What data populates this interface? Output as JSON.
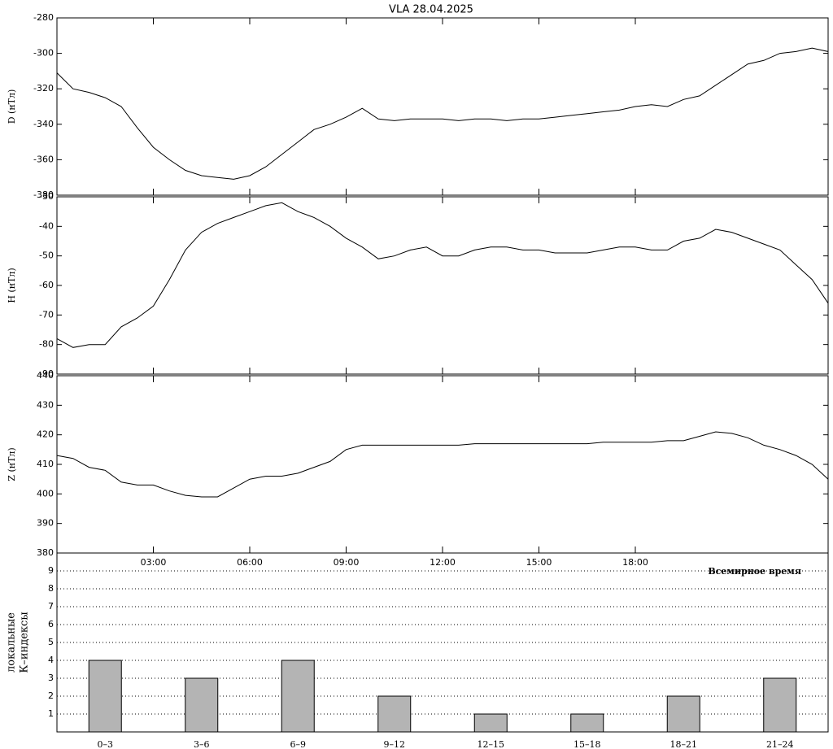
{
  "chart_data": [
    {
      "type": "line",
      "title": "VLA   28.04.2025",
      "ylabel": "D (нТл)",
      "x": [
        0,
        0.5,
        1,
        1.5,
        2,
        2.5,
        3,
        3.5,
        4,
        4.5,
        5,
        5.5,
        6,
        6.5,
        7,
        7.5,
        8,
        8.5,
        9,
        9.5,
        10,
        10.5,
        11,
        11.5,
        12,
        12.5,
        13,
        13.5,
        14,
        14.5,
        15,
        15.5,
        16,
        16.5,
        17,
        17.5,
        18,
        18.5,
        19,
        19.5,
        20,
        20.5,
        21,
        21.5,
        22,
        22.5,
        23,
        23.5,
        24
      ],
      "values": [
        -311,
        -320,
        -322,
        -325,
        -330,
        -342,
        -353,
        -360,
        -366,
        -369,
        -370,
        -371,
        -369,
        -364,
        -357,
        -350,
        -343,
        -340,
        -336,
        -331,
        -337,
        -338,
        -337,
        -337,
        -337,
        -338,
        -337,
        -337,
        -338,
        -337,
        -337,
        -336,
        -335,
        -334,
        -333,
        -332,
        -330,
        -329,
        -330,
        -326,
        -324,
        -318,
        -312,
        -306,
        -304,
        -300,
        -299,
        -297,
        -299
      ],
      "color": "#000000",
      "xlim": [
        0,
        24
      ],
      "ylim": [
        -380,
        -280
      ],
      "yticks": [
        -280,
        -300,
        -320,
        -340,
        -360,
        -380
      ]
    },
    {
      "type": "line",
      "ylabel": "H (нТл)",
      "x": [
        0,
        0.5,
        1,
        1.5,
        2,
        2.5,
        3,
        3.5,
        4,
        4.5,
        5,
        5.5,
        6,
        6.5,
        7,
        7.5,
        8,
        8.5,
        9,
        9.5,
        10,
        10.5,
        11,
        11.5,
        12,
        12.5,
        13,
        13.5,
        14,
        14.5,
        15,
        15.5,
        16,
        16.5,
        17,
        17.5,
        18,
        18.5,
        19,
        19.5,
        20,
        20.5,
        21,
        21.5,
        22,
        22.5,
        23,
        23.5,
        24
      ],
      "values": [
        -78,
        -81,
        -80,
        -80,
        -74,
        -71,
        -67,
        -58,
        -48,
        -42,
        -39,
        -37,
        -35,
        -33,
        -32,
        -35,
        -37,
        -40,
        -44,
        -47,
        -51,
        -50,
        -48,
        -47,
        -50,
        -50,
        -48,
        -47,
        -47,
        -48,
        -48,
        -49,
        -49,
        -49,
        -48,
        -47,
        -47,
        -48,
        -48,
        -45,
        -44,
        -41,
        -42,
        -44,
        -46,
        -48,
        -53,
        -58,
        -66
      ],
      "color": "#000000",
      "xlim": [
        0,
        24
      ],
      "ylim": [
        -90,
        -30
      ],
      "yticks": [
        -30,
        -40,
        -50,
        -60,
        -70,
        -80,
        -90
      ]
    },
    {
      "type": "line",
      "ylabel": "Z (нТл)",
      "xlabel": "Всемирное время",
      "x": [
        0,
        0.5,
        1,
        1.5,
        2,
        2.5,
        3,
        3.5,
        4,
        4.5,
        5,
        5.5,
        6,
        6.5,
        7,
        7.5,
        8,
        8.5,
        9,
        9.5,
        10,
        10.5,
        11,
        11.5,
        12,
        12.5,
        13,
        13.5,
        14,
        14.5,
        15,
        15.5,
        16,
        16.5,
        17,
        17.5,
        18,
        18.5,
        19,
        19.5,
        20,
        20.5,
        21,
        21.5,
        22,
        22.5,
        23,
        23.5,
        24
      ],
      "values": [
        413,
        412,
        409,
        408,
        404,
        403,
        403,
        401,
        399.5,
        399,
        399,
        402,
        405,
        406,
        406,
        407,
        409,
        411,
        415,
        416.5,
        416.5,
        416.5,
        416.5,
        416.5,
        416.5,
        416.5,
        417,
        417,
        417,
        417,
        417,
        417,
        417,
        417,
        417.5,
        417.5,
        417.5,
        417.5,
        418,
        418,
        419.5,
        421,
        420.5,
        419,
        416.5,
        415,
        413,
        410,
        405
      ],
      "color": "#000000",
      "xlim": [
        0,
        24
      ],
      "ylim": [
        380,
        440
      ],
      "yticks": [
        440,
        430,
        420,
        410,
        400,
        390,
        380
      ],
      "xticks": [
        {
          "value": 3,
          "label": "03:00"
        },
        {
          "value": 6,
          "label": "06:00"
        },
        {
          "value": 9,
          "label": "09:00"
        },
        {
          "value": 12,
          "label": "12:00"
        },
        {
          "value": 15,
          "label": "15:00"
        },
        {
          "value": 18,
          "label": "18:00"
        }
      ]
    },
    {
      "type": "bar",
      "ylabel": [
        "локальные",
        "К–индексы"
      ],
      "categories": [
        "0–3",
        "3–6",
        "6–9",
        "9–12",
        "12–15",
        "15–18",
        "18–21",
        "21–24"
      ],
      "values": [
        4,
        3,
        4,
        2,
        1,
        1,
        2,
        3
      ],
      "color": "#b4b4b4",
      "ylim": [
        0,
        10
      ],
      "yticks": [
        1,
        2,
        3,
        4,
        5,
        6,
        7,
        8,
        9
      ],
      "grid": true
    }
  ]
}
